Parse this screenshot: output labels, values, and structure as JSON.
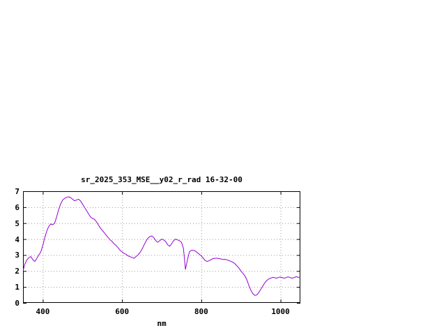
{
  "chart_data": {
    "type": "line",
    "title": "sr_2025_353_MSE__y02_r_rad 16-32-00",
    "xlabel": "nm",
    "ylabel": "",
    "xlim": [
      350,
      1050
    ],
    "ylim": [
      0,
      7
    ],
    "x_ticks": [
      400,
      600,
      800,
      1000
    ],
    "y_ticks": [
      0,
      1,
      2,
      3,
      4,
      5,
      6,
      7
    ],
    "grid": true,
    "legend": "none",
    "colors": {
      "line": "#9400d3",
      "grid": "#9a9a9a",
      "border": "#000000",
      "text": "#000000",
      "background": "#ffffff"
    },
    "series": [
      {
        "name": "sr_2025_353_MSE__y02_r_rad",
        "x": [
          350,
          355,
          360,
          365,
          370,
          375,
          380,
          385,
          390,
          395,
          400,
          405,
          410,
          415,
          420,
          425,
          430,
          435,
          440,
          445,
          450,
          455,
          460,
          465,
          470,
          475,
          480,
          485,
          490,
          495,
          500,
          505,
          510,
          515,
          520,
          525,
          530,
          535,
          540,
          545,
          550,
          555,
          560,
          565,
          570,
          575,
          580,
          585,
          590,
          595,
          600,
          605,
          610,
          615,
          620,
          625,
          630,
          635,
          640,
          645,
          650,
          655,
          660,
          665,
          670,
          675,
          680,
          685,
          690,
          695,
          700,
          705,
          710,
          715,
          720,
          725,
          730,
          735,
          740,
          745,
          750,
          755,
          760,
          765,
          770,
          775,
          780,
          785,
          790,
          795,
          800,
          805,
          810,
          815,
          820,
          825,
          830,
          835,
          840,
          845,
          850,
          855,
          860,
          865,
          870,
          875,
          880,
          885,
          890,
          895,
          900,
          905,
          910,
          915,
          920,
          925,
          930,
          935,
          940,
          945,
          950,
          955,
          960,
          965,
          970,
          975,
          980,
          985,
          990,
          995,
          1000,
          1005,
          1010,
          1015,
          1020,
          1025,
          1030,
          1035,
          1040,
          1045,
          1050
        ],
        "y": [
          2.0,
          2.45,
          2.7,
          2.85,
          2.9,
          2.7,
          2.6,
          2.8,
          3.0,
          3.2,
          3.6,
          4.1,
          4.5,
          4.8,
          4.95,
          4.9,
          5.0,
          5.4,
          5.85,
          6.2,
          6.45,
          6.55,
          6.62,
          6.65,
          6.6,
          6.5,
          6.4,
          6.45,
          6.5,
          6.4,
          6.2,
          6.0,
          5.8,
          5.6,
          5.4,
          5.3,
          5.25,
          5.1,
          4.9,
          4.7,
          4.55,
          4.4,
          4.25,
          4.1,
          3.95,
          3.85,
          3.7,
          3.6,
          3.45,
          3.3,
          3.2,
          3.1,
          3.05,
          2.95,
          2.9,
          2.85,
          2.8,
          2.9,
          3.0,
          3.15,
          3.35,
          3.6,
          3.85,
          4.05,
          4.15,
          4.2,
          4.1,
          3.9,
          3.8,
          3.9,
          4.0,
          3.95,
          3.85,
          3.65,
          3.55,
          3.7,
          3.9,
          4.0,
          3.95,
          3.9,
          3.8,
          3.4,
          2.1,
          2.7,
          3.2,
          3.3,
          3.3,
          3.25,
          3.15,
          3.05,
          2.95,
          2.8,
          2.65,
          2.6,
          2.65,
          2.72,
          2.78,
          2.8,
          2.8,
          2.78,
          2.75,
          2.72,
          2.73,
          2.7,
          2.65,
          2.6,
          2.55,
          2.45,
          2.32,
          2.18,
          2.0,
          1.85,
          1.7,
          1.45,
          1.1,
          0.8,
          0.58,
          0.47,
          0.5,
          0.65,
          0.85,
          1.05,
          1.25,
          1.4,
          1.5,
          1.55,
          1.6,
          1.58,
          1.55,
          1.6,
          1.62,
          1.58,
          1.55,
          1.6,
          1.63,
          1.58,
          1.55,
          1.6,
          1.64,
          1.6,
          1.6
        ]
      }
    ]
  }
}
